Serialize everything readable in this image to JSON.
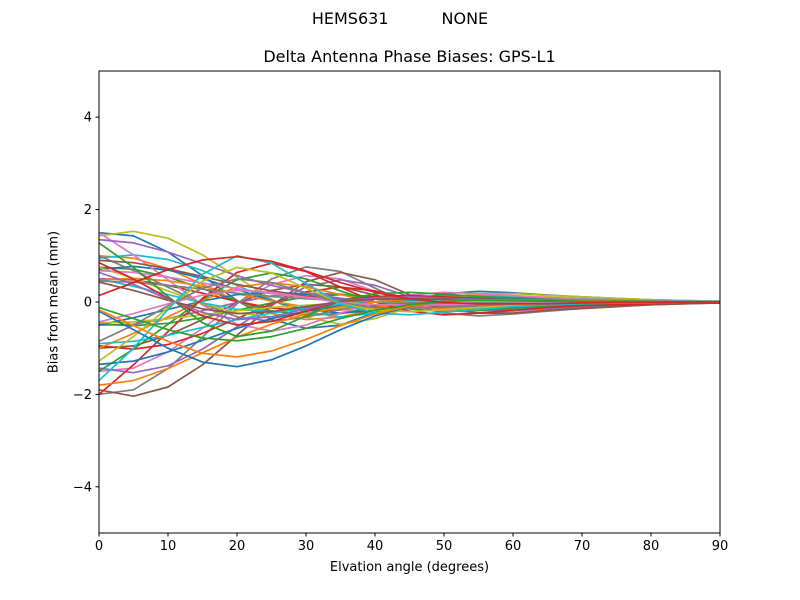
{
  "header": {
    "station": "HEMS631",
    "mode": "NONE"
  },
  "chart_data": {
    "type": "line",
    "suptitle": "HEMS631        NONE",
    "title": "Delta Antenna Phase Biases: GPS-L1",
    "xlabel": "Elvation angle (degrees)",
    "ylabel": "Bias from mean (mm)",
    "xlim": [
      0,
      90
    ],
    "ylim": [
      -5,
      5
    ],
    "xtick_values": [
      0,
      10,
      20,
      30,
      40,
      50,
      60,
      70,
      80,
      90
    ],
    "xtick_labels": [
      "0",
      "10",
      "20",
      "30",
      "40",
      "50",
      "60",
      "70",
      "80",
      "90"
    ],
    "ytick_values": [
      -4,
      -2,
      0,
      2,
      4
    ],
    "ytick_labels": [
      "−4",
      "−2",
      "0",
      "2",
      "4"
    ],
    "grid": false,
    "legend": "none",
    "note": "Unlabeled bundle of per-satellite bias curves; values estimated from pixels; matplotlib tab10 color cycle; lines spread ±2 mm at 0°, converge to 0 by 90°",
    "x": [
      0,
      5,
      10,
      15,
      20,
      25,
      30,
      35,
      40,
      45,
      50,
      55,
      60,
      65,
      70,
      75,
      80,
      85,
      90
    ],
    "series": [
      {
        "color": "#1f77b4",
        "values": [
          1.5,
          1.43,
          1.08,
          0.57,
          0.03,
          -0.38,
          -0.57,
          -0.5,
          -0.23,
          0.03,
          0.18,
          0.23,
          0.2,
          0.15,
          0.11,
          0.08,
          0.05,
          0.03,
          0.02
        ]
      },
      {
        "color": "#ff7f0e",
        "values": [
          1.0,
          0.95,
          0.72,
          0.38,
          0.02,
          -0.25,
          -0.38,
          -0.33,
          -0.15,
          0.02,
          0.12,
          0.15,
          0.13,
          0.1,
          0.07,
          0.05,
          0.03,
          0.02,
          0.01
        ]
      },
      {
        "color": "#2ca02c",
        "values": [
          0.75,
          0.71,
          0.54,
          0.29,
          0.02,
          -0.19,
          -0.29,
          -0.25,
          -0.11,
          0.02,
          0.09,
          0.11,
          0.1,
          0.08,
          0.05,
          0.04,
          0.02,
          0.02,
          0.01
        ]
      },
      {
        "color": "#d62728",
        "values": [
          0.5,
          0.48,
          0.36,
          0.19,
          0.01,
          -0.13,
          -0.19,
          -0.17,
          -0.08,
          0.01,
          0.06,
          0.08,
          0.07,
          0.05,
          0.04,
          0.03,
          0.02,
          0.01,
          0.01
        ]
      },
      {
        "color": "#9467bd",
        "values": [
          -0.5,
          -0.48,
          -0.36,
          -0.19,
          -0.01,
          0.13,
          0.19,
          0.17,
          0.08,
          -0.01,
          -0.06,
          -0.08,
          -0.07,
          -0.05,
          -0.04,
          -0.03,
          -0.02,
          -0.01,
          -0.01
        ]
      },
      {
        "color": "#8c564b",
        "values": [
          -1.0,
          -0.95,
          -0.72,
          -0.38,
          -0.02,
          0.25,
          0.38,
          0.33,
          0.15,
          -0.02,
          -0.12,
          -0.15,
          -0.13,
          -0.1,
          -0.07,
          -0.05,
          -0.03,
          -0.02,
          -0.01
        ]
      },
      {
        "color": "#e377c2",
        "values": [
          -1.5,
          -1.43,
          -1.08,
          -0.57,
          -0.03,
          0.38,
          0.57,
          0.5,
          0.23,
          -0.03,
          -0.18,
          -0.23,
          -0.2,
          -0.15,
          -0.11,
          -0.08,
          -0.05,
          -0.03,
          -0.02
        ]
      },
      {
        "color": "#7f7f7f",
        "values": [
          -2.0,
          -1.9,
          -1.44,
          -0.76,
          -0.04,
          0.5,
          0.76,
          0.66,
          0.3,
          -0.04,
          -0.24,
          -0.3,
          -0.26,
          -0.2,
          -0.14,
          -0.1,
          -0.06,
          -0.04,
          -0.02
        ]
      },
      {
        "color": "#bcbd22",
        "values": [
          1.43,
          1.53,
          1.38,
          1.02,
          0.54,
          0.06,
          -0.33,
          -0.48,
          -0.36,
          -0.12,
          0.09,
          0.18,
          0.18,
          0.14,
          0.11,
          0.08,
          0.05,
          0.03,
          0.02
        ]
      },
      {
        "color": "#17becf",
        "values": [
          0.95,
          1.02,
          0.92,
          0.68,
          0.36,
          0.04,
          -0.22,
          -0.32,
          -0.24,
          -0.08,
          0.06,
          0.12,
          0.12,
          0.09,
          0.07,
          0.05,
          0.03,
          0.02,
          0.01
        ]
      },
      {
        "color": "#1f77b4",
        "values": [
          0.71,
          0.77,
          0.69,
          0.51,
          0.27,
          0.03,
          -0.17,
          -0.24,
          -0.18,
          -0.06,
          0.05,
          0.09,
          0.09,
          0.07,
          0.05,
          0.04,
          0.02,
          0.02,
          0.01
        ]
      },
      {
        "color": "#ff7f0e",
        "values": [
          0.48,
          0.51,
          0.46,
          0.34,
          0.18,
          0.02,
          -0.11,
          -0.16,
          -0.12,
          -0.04,
          0.03,
          0.06,
          0.06,
          0.05,
          0.04,
          0.03,
          0.02,
          0.01,
          0.01
        ]
      },
      {
        "color": "#2ca02c",
        "values": [
          -0.48,
          -0.51,
          -0.46,
          -0.34,
          -0.18,
          -0.02,
          0.11,
          0.16,
          0.12,
          0.04,
          -0.03,
          -0.06,
          -0.06,
          -0.05,
          -0.04,
          -0.03,
          -0.02,
          -0.01,
          -0.01
        ]
      },
      {
        "color": "#d62728",
        "values": [
          -0.95,
          -1.02,
          -0.92,
          -0.68,
          -0.36,
          -0.04,
          0.22,
          0.32,
          0.24,
          0.08,
          -0.06,
          -0.12,
          -0.12,
          -0.09,
          -0.07,
          -0.05,
          -0.03,
          -0.02,
          -0.01
        ]
      },
      {
        "color": "#9467bd",
        "values": [
          -1.43,
          -1.53,
          -1.38,
          -1.02,
          -0.54,
          -0.06,
          0.33,
          0.48,
          0.36,
          0.12,
          -0.09,
          -0.18,
          -0.18,
          -0.14,
          -0.11,
          -0.08,
          -0.05,
          -0.03,
          -0.02
        ]
      },
      {
        "color": "#8c564b",
        "values": [
          -1.9,
          -2.04,
          -1.84,
          -1.36,
          -0.72,
          -0.08,
          0.44,
          0.64,
          0.48,
          0.16,
          -0.12,
          -0.24,
          -0.24,
          -0.18,
          -0.14,
          -0.1,
          -0.06,
          -0.04,
          -0.02
        ]
      },
      {
        "color": "#e377c2",
        "values": [
          1.5,
          1.02,
          0.48,
          -0.06,
          -0.48,
          -0.63,
          -0.5,
          -0.24,
          0.0,
          0.15,
          0.21,
          0.18,
          0.14,
          0.09,
          0.06,
          0.05,
          0.03,
          0.02,
          0.02
        ]
      },
      {
        "color": "#7f7f7f",
        "values": [
          1.0,
          0.68,
          0.32,
          -0.04,
          -0.32,
          -0.42,
          -0.33,
          -0.16,
          0.0,
          0.1,
          0.14,
          0.12,
          0.09,
          0.06,
          0.04,
          0.03,
          0.02,
          0.01,
          0.01
        ]
      },
      {
        "color": "#bcbd22",
        "values": [
          0.75,
          0.51,
          0.24,
          -0.03,
          -0.24,
          -0.32,
          -0.25,
          -0.12,
          0.0,
          0.08,
          0.11,
          0.09,
          0.07,
          0.05,
          0.03,
          0.02,
          0.02,
          0.01,
          0.01
        ]
      },
      {
        "color": "#17becf",
        "values": [
          0.5,
          0.34,
          0.16,
          -0.02,
          -0.16,
          -0.21,
          -0.17,
          -0.08,
          0.0,
          0.05,
          0.07,
          0.06,
          0.05,
          0.03,
          0.02,
          0.02,
          0.01,
          0.01,
          0.01
        ]
      },
      {
        "color": "#1f77b4",
        "values": [
          -0.5,
          -0.34,
          -0.16,
          0.02,
          0.16,
          0.21,
          0.17,
          0.08,
          0.0,
          -0.05,
          -0.07,
          -0.06,
          -0.05,
          -0.03,
          -0.02,
          -0.02,
          -0.01,
          -0.01,
          -0.01
        ]
      },
      {
        "color": "#ff7f0e",
        "values": [
          -1.0,
          -0.68,
          -0.32,
          0.04,
          0.32,
          0.42,
          0.33,
          0.16,
          0.0,
          -0.1,
          -0.14,
          -0.12,
          -0.09,
          -0.06,
          -0.04,
          -0.03,
          -0.02,
          -0.01,
          -0.01
        ]
      },
      {
        "color": "#2ca02c",
        "values": [
          -1.5,
          -1.02,
          -0.48,
          0.06,
          0.48,
          0.63,
          0.5,
          0.24,
          0.0,
          -0.15,
          -0.21,
          -0.18,
          -0.14,
          -0.09,
          -0.06,
          -0.05,
          -0.03,
          -0.02,
          -0.02
        ]
      },
      {
        "color": "#d62728",
        "values": [
          -2.0,
          -1.36,
          -0.64,
          0.08,
          0.64,
          0.84,
          0.66,
          0.32,
          0.0,
          -0.2,
          -0.28,
          -0.24,
          -0.18,
          -0.12,
          -0.08,
          -0.06,
          -0.04,
          -0.02,
          -0.02
        ]
      },
      {
        "color": "#9467bd",
        "values": [
          1.35,
          1.28,
          1.08,
          0.83,
          0.57,
          0.36,
          0.2,
          0.08,
          0.0,
          -0.05,
          -0.08,
          -0.06,
          -0.05,
          -0.03,
          -0.02,
          -0.02,
          0.0,
          0.0,
          0.0
        ]
      },
      {
        "color": "#8c564b",
        "values": [
          0.9,
          0.85,
          0.72,
          0.55,
          0.38,
          0.24,
          0.13,
          0.05,
          0.0,
          -0.03,
          -0.05,
          -0.04,
          -0.03,
          -0.02,
          -0.01,
          -0.01,
          0.0,
          0.0,
          0.0
        ]
      },
      {
        "color": "#e377c2",
        "values": [
          0.68,
          0.64,
          0.54,
          0.41,
          0.29,
          0.18,
          0.1,
          0.04,
          0.0,
          -0.02,
          -0.04,
          -0.03,
          -0.02,
          -0.02,
          -0.01,
          -0.01,
          0.0,
          0.0,
          0.0
        ]
      },
      {
        "color": "#7f7f7f",
        "values": [
          0.45,
          0.43,
          0.36,
          0.28,
          0.19,
          0.12,
          0.07,
          0.03,
          0.0,
          -0.02,
          -0.03,
          -0.02,
          -0.02,
          -0.01,
          -0.01,
          -0.01,
          0.0,
          0.0,
          0.0
        ]
      },
      {
        "color": "#bcbd22",
        "values": [
          -0.45,
          -0.43,
          -0.36,
          -0.28,
          -0.19,
          -0.12,
          -0.07,
          -0.03,
          0.0,
          0.02,
          0.03,
          0.02,
          0.02,
          0.01,
          0.01,
          0.01,
          0.0,
          0.0,
          0.0
        ]
      },
      {
        "color": "#17becf",
        "values": [
          -0.9,
          -0.85,
          -0.72,
          -0.55,
          -0.38,
          -0.24,
          -0.13,
          -0.05,
          0.0,
          0.03,
          0.05,
          0.04,
          0.03,
          0.02,
          0.01,
          0.01,
          0.0,
          0.0,
          0.0
        ]
      },
      {
        "color": "#1f77b4",
        "values": [
          -1.35,
          -1.28,
          -1.08,
          -0.83,
          -0.57,
          -0.36,
          -0.2,
          -0.08,
          0.0,
          0.05,
          0.08,
          0.06,
          0.05,
          0.03,
          0.02,
          0.02,
          0.0,
          0.0,
          0.0
        ]
      },
      {
        "color": "#ff7f0e",
        "values": [
          -1.8,
          -1.7,
          -1.44,
          -1.1,
          -0.76,
          -0.48,
          -0.26,
          -0.1,
          0.0,
          0.06,
          0.1,
          0.08,
          0.06,
          0.04,
          0.02,
          0.02,
          0.0,
          0.0,
          0.0
        ]
      },
      {
        "color": "#2ca02c",
        "values": [
          1.28,
          0.75,
          0.12,
          -0.45,
          -0.75,
          -0.63,
          -0.3,
          0.03,
          0.18,
          0.21,
          0.17,
          0.12,
          0.08,
          0.05,
          0.03,
          0.02,
          0.02,
          0.0,
          0.0
        ]
      },
      {
        "color": "#d62728",
        "values": [
          0.85,
          0.5,
          0.08,
          -0.3,
          -0.5,
          -0.42,
          -0.2,
          0.02,
          0.12,
          0.14,
          0.11,
          0.08,
          0.05,
          0.03,
          0.02,
          0.01,
          0.01,
          0.0,
          0.0
        ]
      },
      {
        "color": "#9467bd",
        "values": [
          0.64,
          0.38,
          0.06,
          -0.23,
          -0.38,
          -0.32,
          -0.15,
          0.02,
          0.09,
          0.11,
          0.08,
          0.06,
          0.04,
          0.02,
          0.02,
          0.01,
          0.01,
          0.0,
          0.0
        ]
      },
      {
        "color": "#8c564b",
        "values": [
          0.43,
          0.25,
          0.04,
          -0.15,
          -0.25,
          -0.21,
          -0.1,
          0.01,
          0.06,
          0.07,
          0.06,
          0.04,
          0.03,
          0.02,
          0.01,
          0.01,
          0.01,
          0.0,
          0.0
        ]
      },
      {
        "color": "#e377c2",
        "values": [
          -0.43,
          -0.25,
          -0.04,
          0.15,
          0.25,
          0.21,
          0.1,
          -0.01,
          -0.06,
          -0.07,
          -0.06,
          -0.04,
          -0.03,
          -0.02,
          -0.01,
          -0.01,
          -0.01,
          0.0,
          0.0
        ]
      },
      {
        "color": "#7f7f7f",
        "values": [
          -0.85,
          -0.5,
          -0.08,
          0.3,
          0.5,
          0.42,
          0.2,
          -0.02,
          -0.12,
          -0.14,
          -0.11,
          -0.08,
          -0.05,
          -0.03,
          -0.02,
          -0.01,
          -0.01,
          0.0,
          0.0
        ]
      },
      {
        "color": "#bcbd22",
        "values": [
          -1.28,
          -0.75,
          -0.12,
          0.45,
          0.75,
          0.63,
          0.3,
          -0.03,
          -0.18,
          -0.21,
          -0.17,
          -0.12,
          -0.08,
          -0.05,
          -0.03,
          -0.02,
          -0.02,
          0.0,
          0.0
        ]
      },
      {
        "color": "#17becf",
        "values": [
          -1.7,
          -1.0,
          -0.16,
          0.6,
          1.0,
          0.84,
          0.4,
          -0.04,
          -0.24,
          -0.28,
          -0.22,
          -0.16,
          -0.1,
          -0.06,
          -0.04,
          -0.02,
          -0.02,
          0.0,
          0.0
        ]
      },
      {
        "color": "#1f77b4",
        "values": [
          -0.2,
          -0.6,
          -1.0,
          -1.3,
          -1.4,
          -1.25,
          -0.95,
          -0.6,
          -0.3,
          -0.1,
          0.02,
          0.06,
          0.06,
          0.05,
          0.03,
          0.02,
          0.01,
          0.0,
          0.0
        ]
      },
      {
        "color": "#ff7f0e",
        "values": [
          -0.17,
          -0.51,
          -0.85,
          -1.11,
          -1.19,
          -1.06,
          -0.81,
          -0.51,
          -0.26,
          -0.09,
          0.02,
          0.05,
          0.05,
          0.04,
          0.03,
          0.02,
          0.01,
          0.0,
          0.0
        ]
      },
      {
        "color": "#2ca02c",
        "values": [
          -0.12,
          -0.36,
          -0.6,
          -0.78,
          -0.84,
          -0.75,
          -0.57,
          -0.36,
          -0.18,
          -0.06,
          0.01,
          0.04,
          0.04,
          0.03,
          0.02,
          0.01,
          0.01,
          0.0,
          0.0
        ]
      },
      {
        "color": "#d62728",
        "values": [
          0.14,
          0.42,
          0.7,
          0.91,
          0.98,
          0.88,
          0.67,
          0.42,
          0.21,
          0.07,
          -0.01,
          -0.04,
          -0.04,
          -0.04,
          -0.02,
          -0.01,
          -0.01,
          0.0,
          0.0
        ]
      }
    ]
  }
}
